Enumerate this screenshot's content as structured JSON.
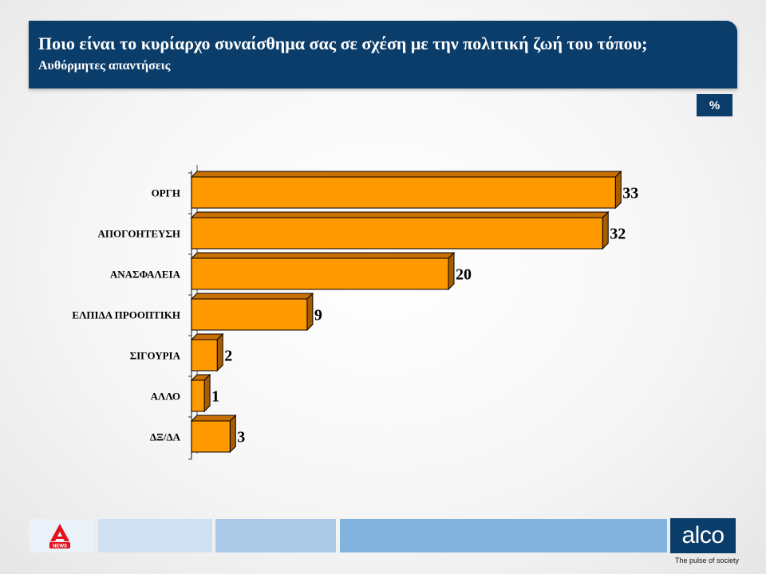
{
  "header": {
    "title": "Ποιο είναι το κυρίαρχο συναίσθημα σας σε σχέση με την πολιτική ζωή του τόπου;",
    "subtitle": "Αυθόρμητες απαντήσεις"
  },
  "unit_badge": "%",
  "chart_data": {
    "type": "bar",
    "orientation": "horizontal",
    "style": "3d",
    "categories": [
      "ΟΡΓΗ",
      "ΑΠΟΓΟΗΤΕΥΣΗ",
      "ΑΝΑΣΦΑΛΕΙΑ",
      "ΕΛΠΙΔΑ ΠΡΟΟΠΤΙΚΗ",
      "ΣΙΓΟΥΡΙΑ",
      "ΑΛΛΟ",
      "ΔΞ/ΔΑ"
    ],
    "values": [
      33,
      32,
      20,
      9,
      2,
      1,
      3
    ],
    "data_labels": [
      "33",
      "32",
      "20",
      "9",
      "2",
      "1",
      "3"
    ],
    "unit": "%",
    "grid": false,
    "colors": {
      "bar_front": "#ff9900",
      "bar_top": "#c96f00",
      "bar_side": "#a85c00",
      "bar_outline": "#000000"
    }
  },
  "branding": {
    "news_logo_label": "NEWS",
    "alco_logo": "alco",
    "tagline": "The pulse of society"
  },
  "colors": {
    "header_bg": "#0b3d6b",
    "header_text": "#ffffff"
  }
}
